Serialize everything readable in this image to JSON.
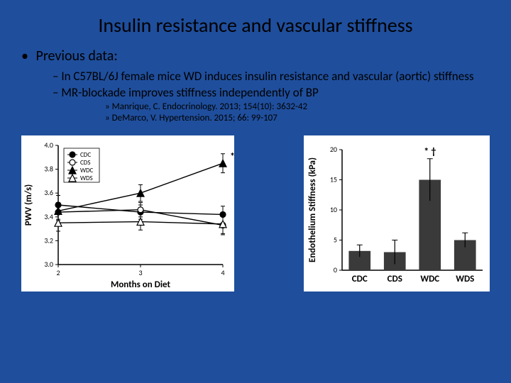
{
  "title": "Insulin resistance and vascular stiffness",
  "bullets": {
    "l1": "Previous data:",
    "l2a": "In C57BL/6J female mice WD induces insulin resistance and vascular (aortic) stiffness",
    "l2b": "MR-blockade improves stiffness independently of BP",
    "l3a": "Manrique, C. Endocrinology. 2013; 154(10): 3632-42",
    "l3b": "DeMarco, V. Hypertension. 2015; 66: 99-107"
  },
  "chart_left": {
    "type": "line",
    "ylabel": "PWV (m/s)",
    "xlabel": "Months on Diet",
    "ylim": [
      3.0,
      4.0
    ],
    "yticks": [
      3.0,
      3.2,
      3.4,
      3.6,
      3.8,
      4.0
    ],
    "xticks": [
      2,
      3,
      4
    ],
    "sig_label": "*†",
    "legend": [
      "CDC",
      "CDS",
      "WDC",
      "WDS"
    ],
    "series": {
      "CDC": {
        "marker": "circle",
        "fill": "#000",
        "y": [
          3.5,
          3.44,
          3.42
        ],
        "err": [
          0.08,
          0.06,
          0.07
        ]
      },
      "CDS": {
        "marker": "circle",
        "fill": "#fff",
        "y": [
          3.44,
          3.46,
          3.33
        ],
        "err": [
          0.07,
          0.06,
          0.08
        ]
      },
      "WDC": {
        "marker": "triangle",
        "fill": "#000",
        "y": [
          3.45,
          3.6,
          3.85
        ],
        "err": [
          0.07,
          0.07,
          0.08
        ]
      },
      "WDS": {
        "marker": "triangle",
        "fill": "#fff",
        "y": [
          3.35,
          3.36,
          3.34
        ],
        "err": [
          0.07,
          0.07,
          0.08
        ]
      }
    },
    "colors": {
      "line": "#000",
      "axis": "#000",
      "bg": "#ffffff"
    }
  },
  "chart_right": {
    "type": "bar",
    "ylabel": "Endothelium Stiffness (kPa)",
    "ylim": [
      0,
      20
    ],
    "yticks": [
      0,
      5,
      10,
      15,
      20
    ],
    "categories": [
      "CDC",
      "CDS",
      "WDC",
      "WDS"
    ],
    "values": [
      3.2,
      3.0,
      15.0,
      5.0
    ],
    "errors": [
      1.0,
      2.0,
      3.5,
      1.2
    ],
    "sig_label": "* †",
    "sig_index": 2,
    "bar_color": "#3a3a3a",
    "colors": {
      "axis": "#000",
      "bg": "#ffffff"
    }
  }
}
